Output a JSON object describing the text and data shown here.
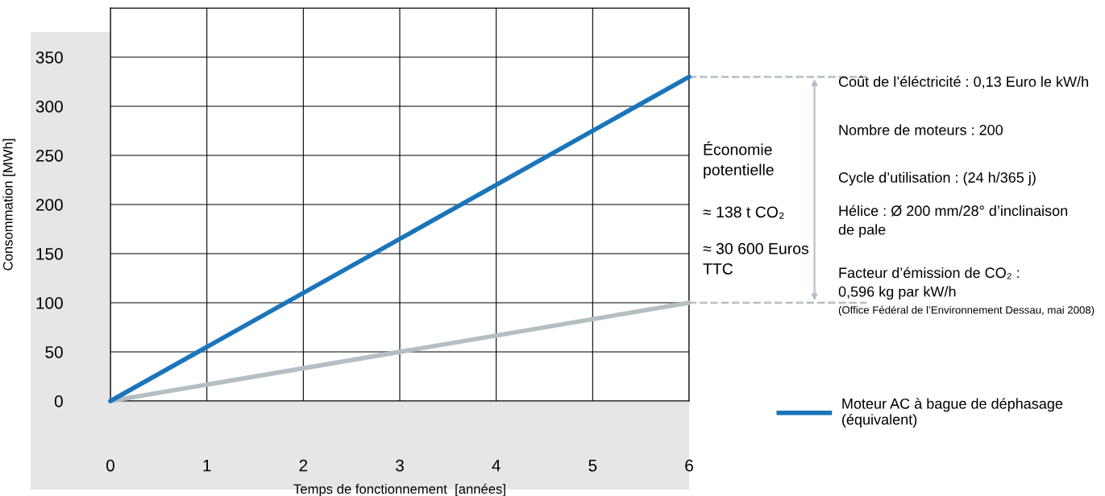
{
  "chart_data": {
    "type": "line",
    "xlabel": "Temps de fonctionnement  [années]",
    "ylabel": "Consommation [MWh]",
    "x": [
      0,
      6
    ],
    "series": [
      {
        "color": "#b4bec3",
        "values": [
          0,
          100
        ]
      },
      {
        "name": "Moteur AC à bague de déphasage\n(équivalent)",
        "color": "#1a75bb",
        "values": [
          0,
          330
        ]
      }
    ],
    "xlim": [
      0,
      6
    ],
    "xticks": [
      0,
      1,
      2,
      3,
      4,
      5,
      6
    ],
    "ylim": [
      0,
      400
    ],
    "yticks": [
      0,
      50,
      100,
      150,
      200,
      250,
      300,
      350,
      {
        "value": 400,
        "label": null
      }
    ],
    "grid": true,
    "legend": "bottom right",
    "marker": "none",
    "line_style": "solid",
    "annotations": [
      "Économie\npotentielle",
      "≈ 138 t CO₂",
      "≈ 30 600 Euros\nTTC",
      "Coût de l’éléctricité : 0,13 Euro le kW/h",
      "Nombre de moteurs : 200",
      "Cycle d’utilisation : (24 h/365 j)",
      "Hélice : Ø 200 mm/28° d’inclinaison\nde pale",
      "Facteur d’émission de CO₂ :\n0,596 kg par kW/h",
      "(Office Fédéral de l’Environnement Dessau, mai 2008)"
    ]
  }
}
